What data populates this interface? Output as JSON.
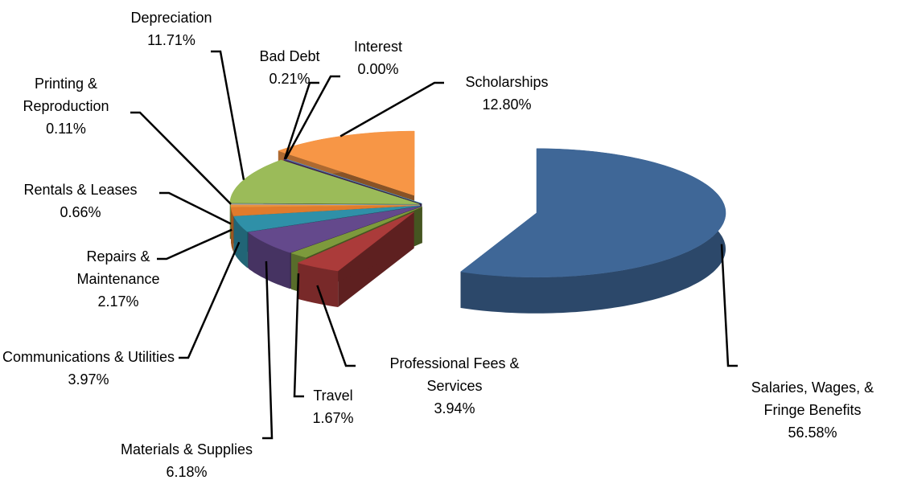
{
  "chart_data": {
    "type": "pie3d",
    "categories": [
      "Salaries, Wages, & Fringe Benefits",
      "Professional Fees & Services",
      "Travel",
      "Materials & Supplies",
      "Communications & Utilities",
      "Repairs & Maintenance",
      "Rentals & Leases",
      "Printing & Reproduction",
      "Depreciation",
      "Bad Debt",
      "Interest",
      "Scholarships"
    ],
    "values": [
      56.58,
      3.94,
      1.67,
      6.18,
      3.97,
      2.17,
      0.66,
      0.11,
      11.71,
      0.21,
      0,
      12.8
    ],
    "value_labels": [
      "56.58%",
      "3.94%",
      "1.67%",
      "6.18%",
      "3.97%",
      "2.17%",
      "0.66%",
      "0.11%",
      "11.71%",
      "0.21%",
      "0.00%",
      "12.80%"
    ],
    "colors": [
      "#3f6797",
      "#ab3b3a",
      "#7d9a3c",
      "#64498c",
      "#2f90a8",
      "#e07b2c",
      "#e8923f",
      "#8eaad6",
      "#9bbb59",
      "#5b4080",
      "#4bacc6",
      "#f79646"
    ]
  }
}
